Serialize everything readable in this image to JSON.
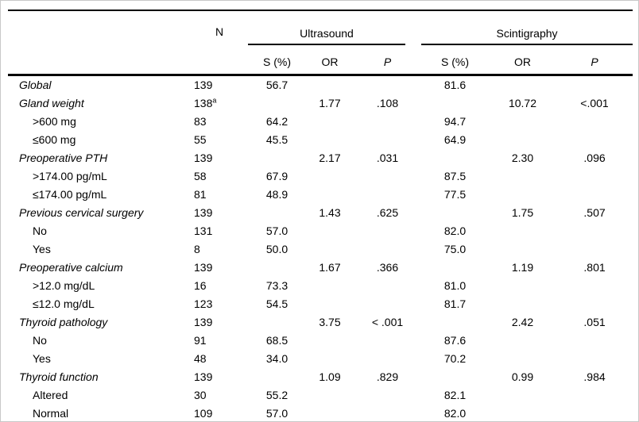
{
  "colors": {
    "background": "#ffffff",
    "text": "#000000",
    "rule": "#000000"
  },
  "table": {
    "header": {
      "n": "N",
      "groups": [
        {
          "label": "Ultrasound",
          "cols": [
            "S (%)",
            "OR",
            "P"
          ]
        },
        {
          "label": "Scintigraphy",
          "cols": [
            "S (%)",
            "OR",
            "P"
          ]
        }
      ]
    },
    "rows": [
      {
        "style": "category",
        "label": "Global",
        "n": "139",
        "us_s": "56.7",
        "us_or": "",
        "us_p": "",
        "sc_s": "81.6",
        "sc_or": "",
        "sc_p": ""
      },
      {
        "style": "category",
        "label": "Gland weight",
        "n": "138",
        "n_sup": "a",
        "us_s": "",
        "us_or": "1.77",
        "us_p": ".108",
        "sc_s": "",
        "sc_or": "10.72",
        "sc_p": "<.001"
      },
      {
        "style": "sub",
        "label": ">600 mg",
        "n": "83",
        "us_s": "64.2",
        "us_or": "",
        "us_p": "",
        "sc_s": "94.7",
        "sc_or": "",
        "sc_p": ""
      },
      {
        "style": "sub",
        "label": "≤600 mg",
        "n": "55",
        "us_s": "45.5",
        "us_or": "",
        "us_p": "",
        "sc_s": "64.9",
        "sc_or": "",
        "sc_p": ""
      },
      {
        "style": "category",
        "label": "Preoperative PTH",
        "n": "139",
        "us_s": "",
        "us_or": "2.17",
        "us_p": ".031",
        "sc_s": "",
        "sc_or": "2.30",
        "sc_p": ".096"
      },
      {
        "style": "sub",
        "label": ">174.00 pg/mL",
        "n": "58",
        "us_s": "67.9",
        "us_or": "",
        "us_p": "",
        "sc_s": "87.5",
        "sc_or": "",
        "sc_p": ""
      },
      {
        "style": "sub",
        "label": "≤174.00 pg/mL",
        "n": "81",
        "us_s": "48.9",
        "us_or": "",
        "us_p": "",
        "sc_s": "77.5",
        "sc_or": "",
        "sc_p": ""
      },
      {
        "style": "category",
        "label": "Previous cervical surgery",
        "n": "139",
        "us_s": "",
        "us_or": "1.43",
        "us_p": ".625",
        "sc_s": "",
        "sc_or": "1.75",
        "sc_p": ".507"
      },
      {
        "style": "sub",
        "label": "No",
        "n": "131",
        "us_s": "57.0",
        "us_or": "",
        "us_p": "",
        "sc_s": "82.0",
        "sc_or": "",
        "sc_p": ""
      },
      {
        "style": "sub",
        "label": "Yes",
        "n": "8",
        "us_s": "50.0",
        "us_or": "",
        "us_p": "",
        "sc_s": "75.0",
        "sc_or": "",
        "sc_p": ""
      },
      {
        "style": "category",
        "label": "Preoperative calcium",
        "n": "139",
        "us_s": "",
        "us_or": "1.67",
        "us_p": ".366",
        "sc_s": "",
        "sc_or": "1.19",
        "sc_p": ".801"
      },
      {
        "style": "sub",
        "label": ">12.0 mg/dL",
        "n": "16",
        "us_s": "73.3",
        "us_or": "",
        "us_p": "",
        "sc_s": "81.0",
        "sc_or": "",
        "sc_p": ""
      },
      {
        "style": "sub",
        "label": "≤12.0 mg/dL",
        "n": "123",
        "us_s": "54.5",
        "us_or": "",
        "us_p": "",
        "sc_s": "81.7",
        "sc_or": "",
        "sc_p": ""
      },
      {
        "style": "category",
        "label": "Thyroid pathology",
        "n": "139",
        "us_s": "",
        "us_or": "3.75",
        "us_p": "< .001",
        "sc_s": "",
        "sc_or": "2.42",
        "sc_p": ".051"
      },
      {
        "style": "sub",
        "label": "No",
        "n": "91",
        "us_s": "68.5",
        "us_or": "",
        "us_p": "",
        "sc_s": "87.6",
        "sc_or": "",
        "sc_p": ""
      },
      {
        "style": "sub",
        "label": "Yes",
        "n": "48",
        "us_s": "34.0",
        "us_or": "",
        "us_p": "",
        "sc_s": "70.2",
        "sc_or": "",
        "sc_p": ""
      },
      {
        "style": "category",
        "label": "Thyroid function",
        "n": "139",
        "us_s": "",
        "us_or": "1.09",
        "us_p": ".829",
        "sc_s": "",
        "sc_or": "0.99",
        "sc_p": ".984"
      },
      {
        "style": "sub",
        "label": "Altered",
        "n": "30",
        "us_s": "55.2",
        "us_or": "",
        "us_p": "",
        "sc_s": "82.1",
        "sc_or": "",
        "sc_p": ""
      },
      {
        "style": "sub",
        "label": "Normal",
        "n": "109",
        "us_s": "57.0",
        "us_or": "",
        "us_p": "",
        "sc_s": "82.0",
        "sc_or": "",
        "sc_p": ""
      }
    ]
  }
}
